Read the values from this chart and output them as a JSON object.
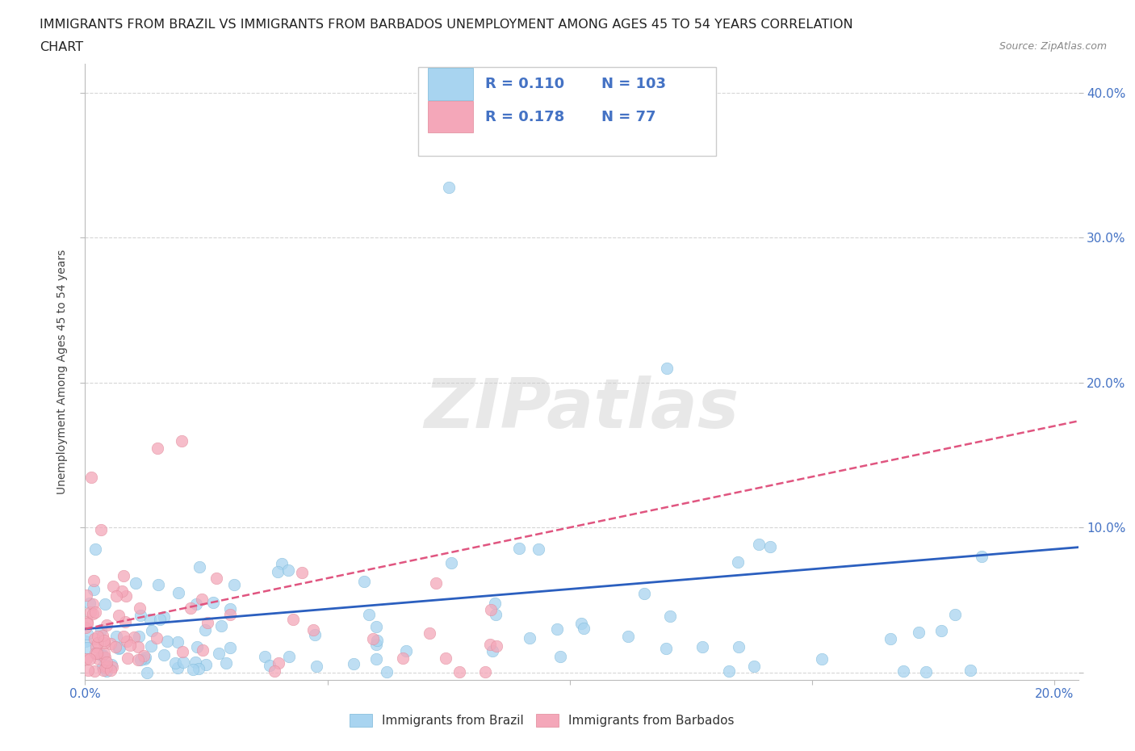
{
  "title_line1": "IMMIGRANTS FROM BRAZIL VS IMMIGRANTS FROM BARBADOS UNEMPLOYMENT AMONG AGES 45 TO 54 YEARS CORRELATION",
  "title_line2": "CHART",
  "source": "Source: ZipAtlas.com",
  "ylabel": "Unemployment Among Ages 45 to 54 years",
  "xlim": [
    0.0,
    0.205
  ],
  "ylim": [
    -0.005,
    0.42
  ],
  "xticks": [
    0.0,
    0.05,
    0.1,
    0.15,
    0.2
  ],
  "yticks": [
    0.0,
    0.1,
    0.2,
    0.3,
    0.4
  ],
  "brazil_color": "#a8d4f0",
  "barbados_color": "#f4a7b9",
  "brazil_R": 0.11,
  "brazil_N": 103,
  "barbados_R": 0.178,
  "barbados_N": 77,
  "brazil_trend_color": "#2B5FBF",
  "barbados_trend_color": "#E05580",
  "watermark": "ZIPatlas",
  "legend_label_brazil": "Immigrants from Brazil",
  "legend_label_barbados": "Immigrants from Barbados",
  "stat_color": "#4472C4",
  "tick_color": "#4472C4"
}
